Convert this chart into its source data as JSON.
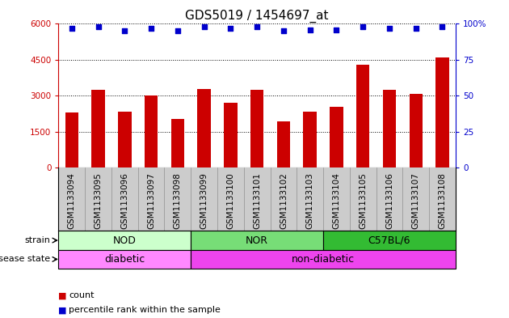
{
  "title": "GDS5019 / 1454697_at",
  "samples": [
    "GSM1133094",
    "GSM1133095",
    "GSM1133096",
    "GSM1133097",
    "GSM1133098",
    "GSM1133099",
    "GSM1133100",
    "GSM1133101",
    "GSM1133102",
    "GSM1133103",
    "GSM1133104",
    "GSM1133105",
    "GSM1133106",
    "GSM1133107",
    "GSM1133108"
  ],
  "counts": [
    2300,
    3250,
    2350,
    3000,
    2050,
    3300,
    2700,
    3250,
    1950,
    2350,
    2550,
    4300,
    3250,
    3100,
    4600
  ],
  "percentiles": [
    97,
    98,
    95,
    97,
    95,
    98,
    97,
    98,
    95,
    96,
    96,
    98,
    97,
    97,
    98
  ],
  "bar_color": "#cc0000",
  "dot_color": "#0000cc",
  "ylim_left": [
    0,
    6000
  ],
  "ylim_right": [
    0,
    100
  ],
  "yticks_left": [
    0,
    1500,
    3000,
    4500,
    6000
  ],
  "yticks_right": [
    0,
    25,
    50,
    75,
    100
  ],
  "strain_groups": [
    {
      "label": "NOD",
      "start": 0,
      "end": 5,
      "color": "#ccffcc"
    },
    {
      "label": "NOR",
      "start": 5,
      "end": 10,
      "color": "#77dd77"
    },
    {
      "label": "C57BL/6",
      "start": 10,
      "end": 15,
      "color": "#33bb33"
    }
  ],
  "disease_groups": [
    {
      "label": "diabetic",
      "start": 0,
      "end": 5,
      "color": "#ff88ff"
    },
    {
      "label": "non-diabetic",
      "start": 5,
      "end": 15,
      "color": "#ee44ee"
    }
  ],
  "strain_label": "strain",
  "disease_label": "disease state",
  "legend_count_label": "count",
  "legend_pct_label": "percentile rank within the sample",
  "plot_bg_color": "#ffffff",
  "xtick_bg_color": "#cccccc",
  "title_fontsize": 11,
  "tick_fontsize": 7.5,
  "label_fontsize": 8,
  "group_fontsize": 9,
  "bar_width": 0.5
}
